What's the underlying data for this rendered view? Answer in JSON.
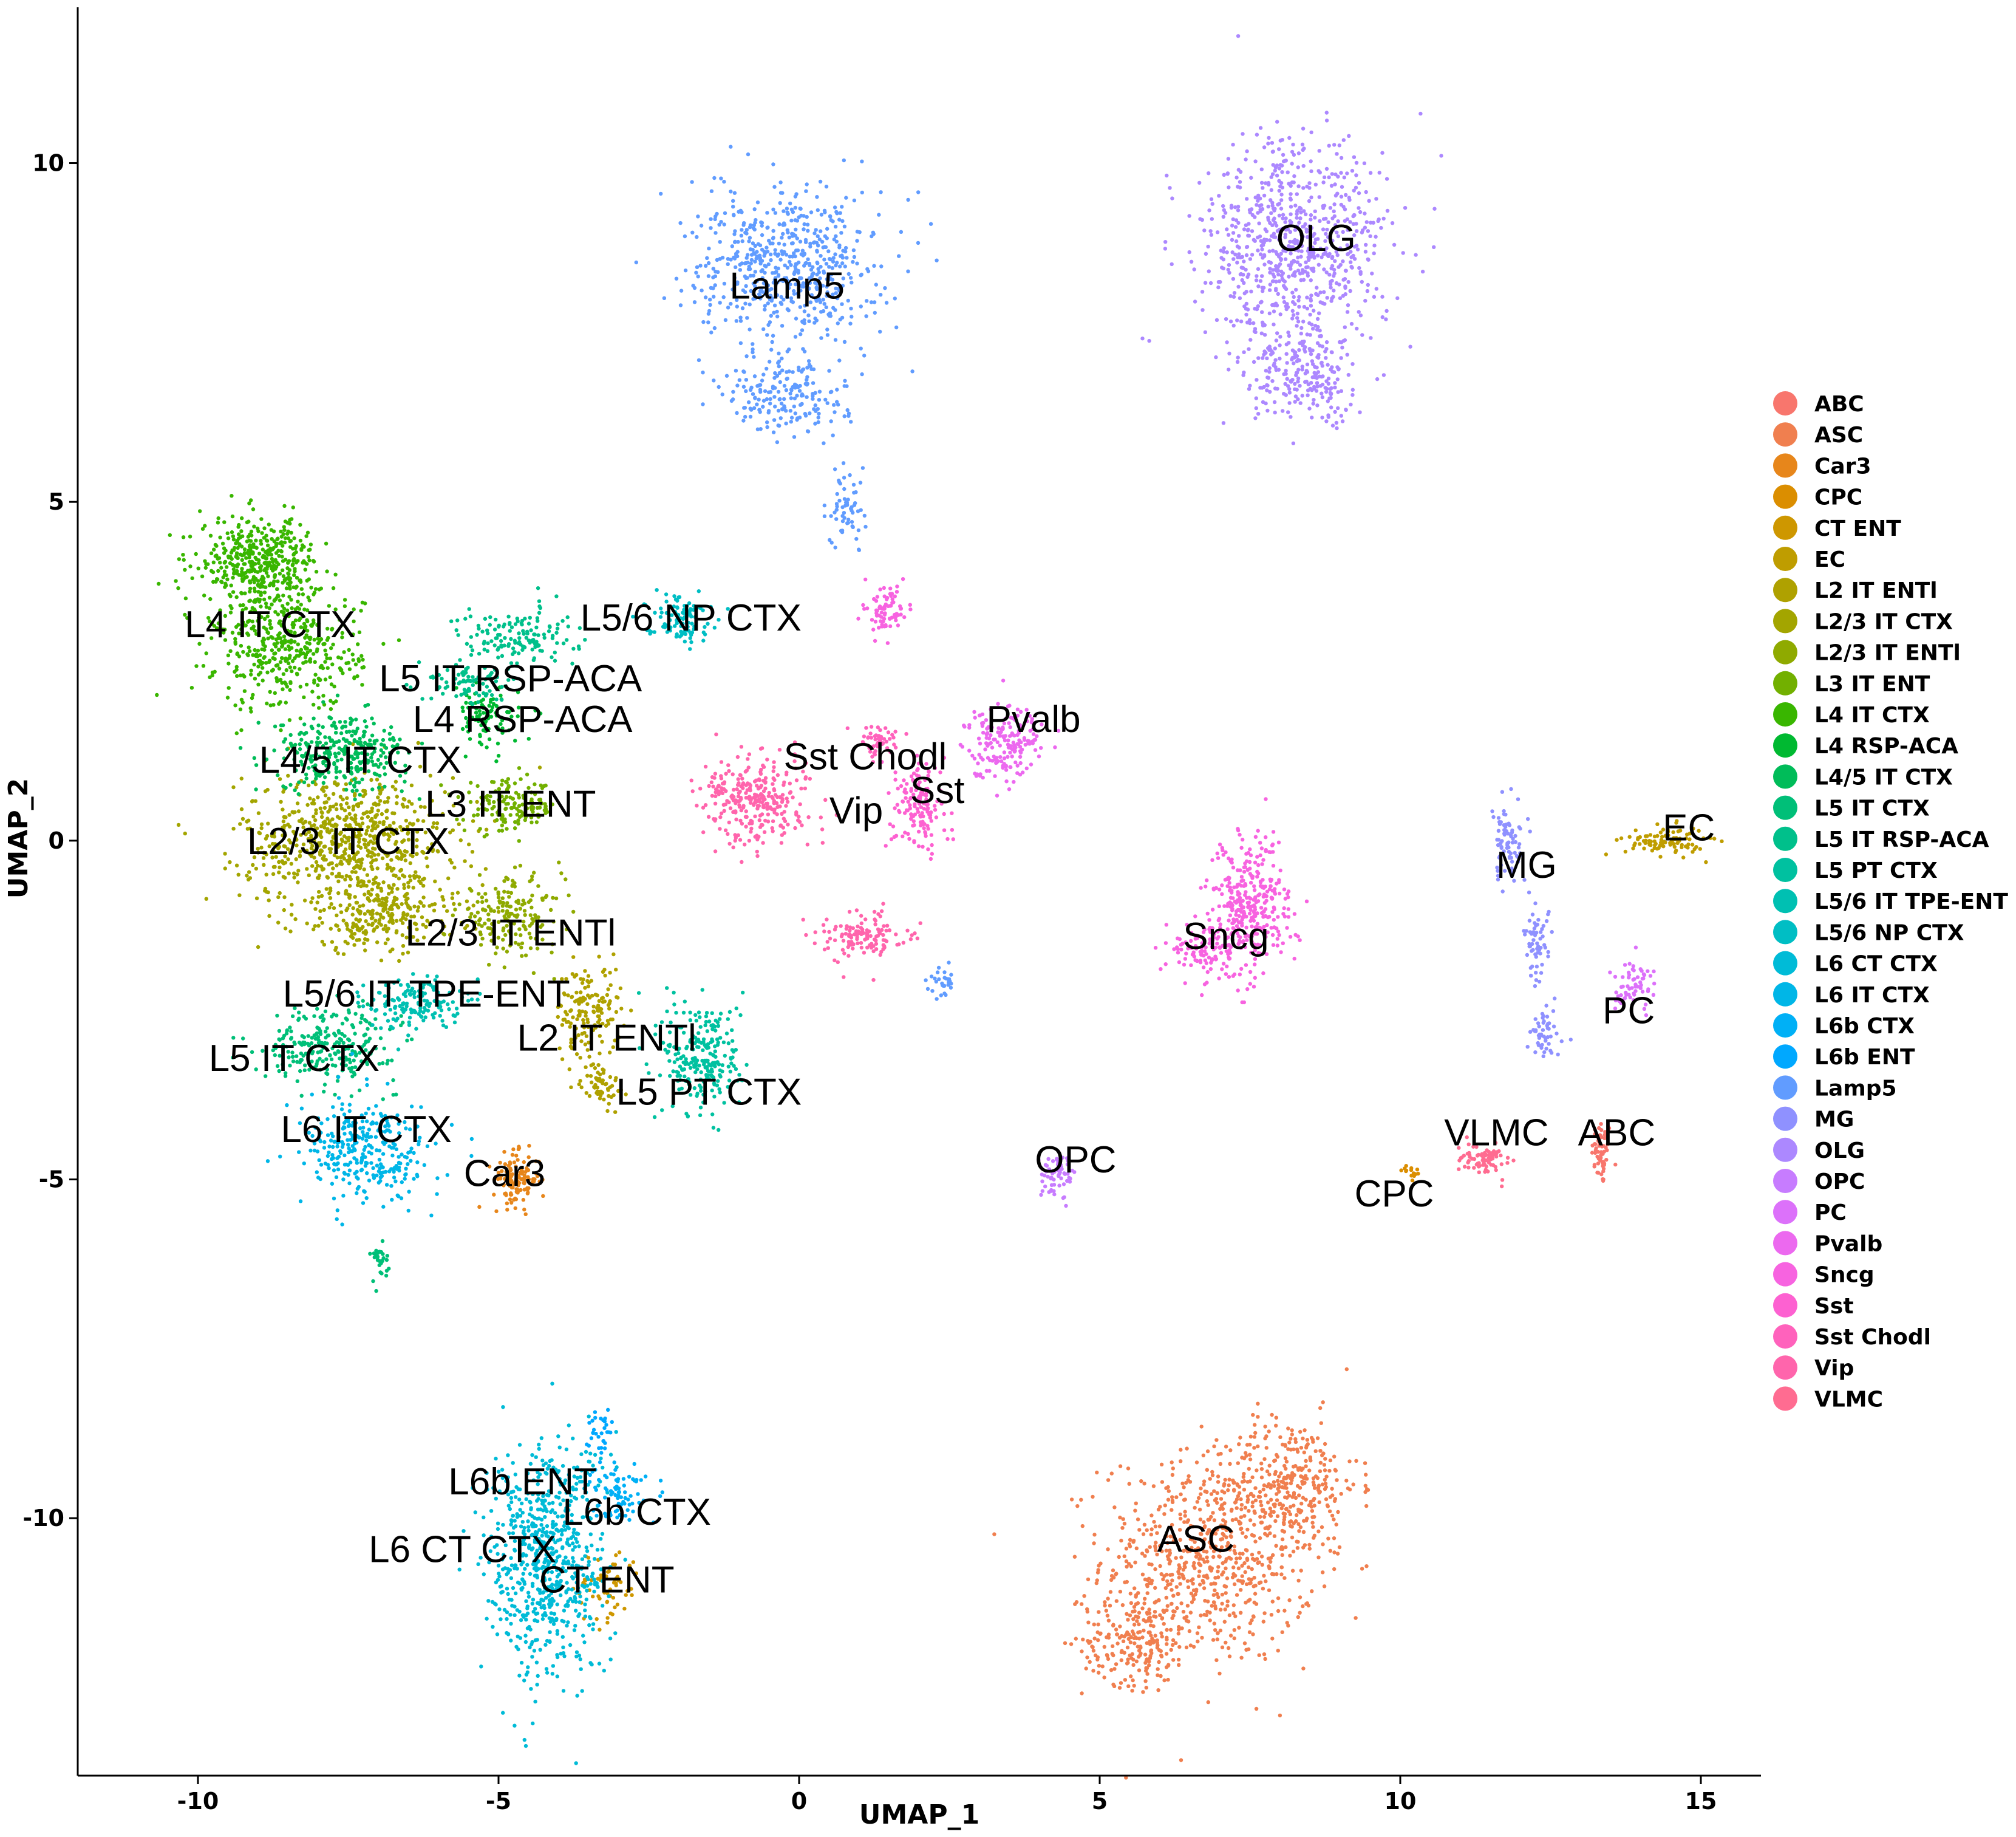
{
  "chart_data": {
    "type": "scatter",
    "xlabel": "UMAP_1",
    "ylabel": "UMAP_2",
    "xlim": [
      -12,
      16
    ],
    "ylim": [
      -13.8,
      12.3
    ],
    "xticks": [
      -10,
      -5,
      0,
      5,
      10,
      15
    ],
    "yticks": [
      -10,
      -5,
      0,
      5,
      10
    ],
    "xtick_labels": [
      "-10",
      "-5",
      "0",
      "5",
      "10",
      "15"
    ],
    "ytick_labels": [
      "-10",
      "-5",
      "0",
      "5",
      "10"
    ],
    "grid": false,
    "legend_position": "right",
    "clusters": [
      {
        "name": "ABC",
        "color": "#F8766D",
        "label_pos": [
          13.6,
          -4.3
        ],
        "blobs": [
          [
            13.35,
            -4.6,
            0.15,
            0.45,
            60
          ]
        ]
      },
      {
        "name": "ASC",
        "color": "#F07F4F",
        "label_pos": [
          6.6,
          -10.3
        ],
        "blobs": [
          [
            6.8,
            -10.6,
            1.6,
            1.4,
            700
          ],
          [
            8.2,
            -9.5,
            1.0,
            0.9,
            300
          ],
          [
            5.6,
            -11.8,
            0.8,
            0.6,
            200
          ]
        ]
      },
      {
        "name": "Car3",
        "color": "#E7861B",
        "label_pos": [
          -4.9,
          -4.9
        ],
        "blobs": [
          [
            -4.7,
            -5.0,
            0.35,
            0.35,
            120
          ]
        ]
      },
      {
        "name": "CPC",
        "color": "#DB8E00",
        "label_pos": [
          9.9,
          -5.2
        ],
        "blobs": [
          [
            10.2,
            -4.9,
            0.15,
            0.1,
            15
          ]
        ]
      },
      {
        "name": "CT ENT",
        "color": "#CE9700",
        "label_pos": [
          -3.2,
          -10.9
        ],
        "blobs": [
          [
            -3.2,
            -11.0,
            0.5,
            0.5,
            60
          ]
        ]
      },
      {
        "name": "EC",
        "color": "#BF9D00",
        "label_pos": [
          14.8,
          0.2
        ],
        "blobs": [
          [
            14.4,
            0.0,
            0.6,
            0.2,
            100
          ]
        ]
      },
      {
        "name": "L2 IT ENTl",
        "color": "#AFA100",
        "label_pos": [
          -3.2,
          -2.9
        ],
        "blobs": [
          [
            -3.5,
            -2.5,
            0.5,
            0.6,
            150
          ],
          [
            -3.3,
            -3.6,
            0.3,
            0.3,
            60
          ]
        ]
      },
      {
        "name": "L2/3 IT CTX",
        "color": "#A3A500",
        "label_pos": [
          -7.5,
          0.0
        ],
        "blobs": [
          [
            -7.5,
            0.0,
            1.6,
            0.9,
            700
          ],
          [
            -7.0,
            -1.1,
            1.2,
            0.5,
            250
          ]
        ]
      },
      {
        "name": "L2/3 IT ENTl",
        "color": "#8FAA00",
        "label_pos": [
          -4.8,
          -1.35
        ],
        "blobs": [
          [
            -4.8,
            -1.1,
            0.8,
            0.5,
            180
          ]
        ]
      },
      {
        "name": "L3 IT ENT",
        "color": "#72B000",
        "label_pos": [
          -4.8,
          0.55
        ],
        "blobs": [
          [
            -4.8,
            0.5,
            0.7,
            0.35,
            150
          ]
        ]
      },
      {
        "name": "L4 IT CTX",
        "color": "#39B600",
        "label_pos": [
          -8.8,
          3.2
        ],
        "blobs": [
          [
            -9.0,
            4.1,
            0.9,
            0.6,
            450
          ],
          [
            -8.5,
            2.8,
            1.1,
            0.8,
            400
          ]
        ]
      },
      {
        "name": "L4 RSP-ACA",
        "color": "#00B931",
        "label_pos": [
          -4.6,
          1.8
        ],
        "blobs": [
          [
            -5.2,
            1.8,
            0.5,
            0.4,
            100
          ]
        ]
      },
      {
        "name": "L4/5 IT CTX",
        "color": "#00BC59",
        "label_pos": [
          -7.3,
          1.2
        ],
        "blobs": [
          [
            -7.6,
            1.3,
            1.0,
            0.5,
            300
          ]
        ]
      },
      {
        "name": "L5 IT CTX",
        "color": "#00BF78",
        "label_pos": [
          -8.4,
          -3.2
        ],
        "blobs": [
          [
            -7.8,
            -3.0,
            1.0,
            0.5,
            250
          ],
          [
            -7.0,
            -6.2,
            0.15,
            0.3,
            30
          ]
        ]
      },
      {
        "name": "L5 IT RSP-ACA",
        "color": "#00C08B",
        "label_pos": [
          -4.8,
          2.4
        ],
        "blobs": [
          [
            -4.7,
            3.0,
            0.9,
            0.4,
            150
          ],
          [
            -5.5,
            2.3,
            0.6,
            0.3,
            80
          ]
        ]
      },
      {
        "name": "L5 PT CTX",
        "color": "#00C1A0",
        "label_pos": [
          -1.5,
          -3.7
        ],
        "blobs": [
          [
            -1.6,
            -3.2,
            0.6,
            0.8,
            250
          ]
        ]
      },
      {
        "name": "L5/6 IT TPE-ENT",
        "color": "#00C0B2",
        "label_pos": [
          -6.2,
          -2.25
        ],
        "blobs": [
          [
            -6.4,
            -2.4,
            0.7,
            0.35,
            150
          ]
        ]
      },
      {
        "name": "L5/6 NP CTX",
        "color": "#00BEC4",
        "label_pos": [
          -1.8,
          3.3
        ],
        "blobs": [
          [
            -2.0,
            3.3,
            0.5,
            0.3,
            100
          ]
        ]
      },
      {
        "name": "L6 CT CTX",
        "color": "#00BBD7",
        "label_pos": [
          -5.6,
          -10.45
        ],
        "blobs": [
          [
            -4.2,
            -10.6,
            0.9,
            1.6,
            700
          ]
        ]
      },
      {
        "name": "L6 IT CTX",
        "color": "#00B6E7",
        "label_pos": [
          -7.2,
          -4.25
        ],
        "blobs": [
          [
            -7.2,
            -4.6,
            1.0,
            0.7,
            300
          ]
        ]
      },
      {
        "name": "L6b CTX",
        "color": "#00B0F6",
        "label_pos": [
          -2.7,
          -9.9
        ],
        "blobs": [
          [
            -3.0,
            -9.6,
            0.4,
            0.4,
            80
          ]
        ]
      },
      {
        "name": "L6b ENT",
        "color": "#00A8FF",
        "label_pos": [
          -4.6,
          -9.45
        ],
        "blobs": [
          [
            -3.3,
            -8.7,
            0.2,
            0.3,
            30
          ]
        ]
      },
      {
        "name": "Lamp5",
        "color": "#619CFF",
        "label_pos": [
          -0.2,
          8.2
        ],
        "blobs": [
          [
            -0.2,
            8.5,
            1.4,
            1.0,
            600
          ],
          [
            -0.2,
            6.6,
            0.9,
            0.6,
            200
          ],
          [
            0.8,
            4.9,
            0.3,
            0.5,
            60
          ],
          [
            2.4,
            -2.1,
            0.2,
            0.2,
            30
          ]
        ]
      },
      {
        "name": "MG",
        "color": "#8F91FF",
        "label_pos": [
          12.1,
          -0.35
        ],
        "blobs": [
          [
            11.8,
            0.0,
            0.3,
            0.6,
            80
          ],
          [
            12.3,
            -1.5,
            0.2,
            0.6,
            60
          ],
          [
            12.4,
            -2.9,
            0.3,
            0.3,
            50
          ]
        ]
      },
      {
        "name": "OLG",
        "color": "#AC88FF",
        "label_pos": [
          8.6,
          8.9
        ],
        "blobs": [
          [
            8.2,
            8.7,
            1.4,
            1.5,
            800
          ],
          [
            8.5,
            6.8,
            0.9,
            0.6,
            200
          ]
        ]
      },
      {
        "name": "OPC",
        "color": "#C77CFF",
        "label_pos": [
          4.6,
          -4.7
        ],
        "blobs": [
          [
            4.3,
            -5.0,
            0.25,
            0.3,
            60
          ]
        ]
      },
      {
        "name": "PC",
        "color": "#DC71FA",
        "label_pos": [
          13.8,
          -2.5
        ],
        "blobs": [
          [
            13.9,
            -2.1,
            0.3,
            0.35,
            60
          ]
        ]
      },
      {
        "name": "Pvalb",
        "color": "#EC69EF",
        "label_pos": [
          3.9,
          1.8
        ],
        "blobs": [
          [
            3.4,
            1.5,
            0.6,
            0.5,
            180
          ]
        ]
      },
      {
        "name": "Sncg",
        "color": "#F763E0",
        "label_pos": [
          7.1,
          -1.4
        ],
        "blobs": [
          [
            7.5,
            -1.0,
            0.6,
            0.9,
            350
          ],
          [
            6.7,
            -1.6,
            0.5,
            0.4,
            100
          ],
          [
            1.5,
            3.4,
            0.3,
            0.35,
            80
          ]
        ]
      },
      {
        "name": "Sst",
        "color": "#FD61D1",
        "label_pos": [
          2.3,
          0.75
        ],
        "blobs": [
          [
            2.0,
            0.5,
            0.4,
            0.6,
            150
          ]
        ]
      },
      {
        "name": "Sst Chodl",
        "color": "#FF62BC",
        "label_pos": [
          1.1,
          1.25
        ],
        "blobs": [
          [
            1.3,
            1.5,
            0.3,
            0.2,
            50
          ]
        ]
      },
      {
        "name": "Vip",
        "color": "#FF65AC",
        "label_pos": [
          0.95,
          0.45
        ],
        "blobs": [
          [
            -0.7,
            0.6,
            0.8,
            0.6,
            300
          ],
          [
            1.1,
            -1.4,
            0.6,
            0.3,
            130
          ]
        ]
      },
      {
        "name": "VLMC",
        "color": "#FF6C91",
        "label_pos": [
          11.6,
          -4.3
        ],
        "blobs": [
          [
            11.4,
            -4.7,
            0.4,
            0.2,
            80
          ]
        ]
      }
    ]
  }
}
